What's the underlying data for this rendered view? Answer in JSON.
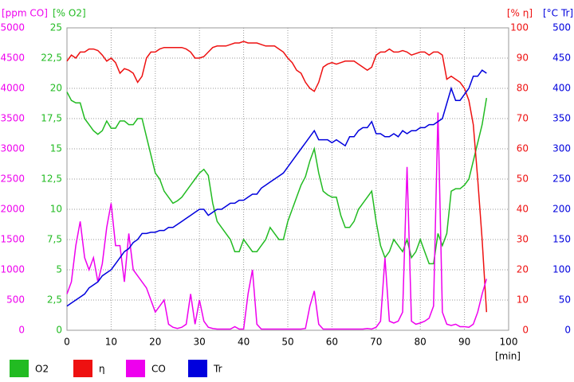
{
  "chart_data": {
    "type": "line",
    "ylabel": "[ppm CO]",
    "y2label": "[% O2]",
    "y3label": "[% η]",
    "y4label": "[°C Tr]",
    "xlabel": "[min]",
    "xlim": [
      0,
      100
    ],
    "xticks": [
      0,
      10,
      20,
      30,
      40,
      50,
      60,
      70,
      80,
      90,
      100
    ],
    "ylim": [
      0,
      5000
    ],
    "yticks": [
      0,
      500,
      1000,
      1500,
      2000,
      2500,
      3000,
      3500,
      4000,
      4500,
      5000
    ],
    "y2lim": [
      0,
      25
    ],
    "y2ticks": [
      0,
      {
        "value": 2.5,
        "label": "2,5"
      },
      5,
      {
        "value": 7.5,
        "label": "7,5"
      },
      10,
      {
        "value": 12.5,
        "label": "12,5"
      },
      15,
      {
        "value": 17.5,
        "label": "17,5"
      },
      20,
      {
        "value": 22.5,
        "label": "22,5"
      },
      25
    ],
    "y3lim": [
      0,
      100
    ],
    "y3ticks": [
      0,
      10,
      20,
      30,
      40,
      50,
      60,
      70,
      80,
      90,
      100
    ],
    "y4lim": [
      0,
      500
    ],
    "y4ticks": [
      0,
      50,
      100,
      150,
      200,
      250,
      300,
      350,
      400,
      450,
      500
    ],
    "grid": true,
    "x": [
      0,
      1,
      2,
      3,
      4,
      5,
      6,
      7,
      8,
      9,
      10,
      11,
      12,
      13,
      14,
      15,
      16,
      17,
      18,
      19,
      20,
      21,
      22,
      23,
      24,
      25,
      26,
      27,
      28,
      29,
      30,
      31,
      32,
      33,
      34,
      35,
      36,
      37,
      38,
      39,
      40,
      41,
      42,
      43,
      44,
      45,
      46,
      47,
      48,
      49,
      50,
      51,
      52,
      53,
      54,
      55,
      56,
      57,
      58,
      59,
      60,
      61,
      62,
      63,
      64,
      65,
      66,
      67,
      68,
      69,
      70,
      71,
      72,
      73,
      74,
      75,
      76,
      77,
      78,
      79,
      80,
      81,
      82,
      83,
      84,
      85,
      86,
      87,
      88,
      89,
      90,
      91,
      92,
      93,
      94,
      95
    ],
    "series": [
      {
        "name": "O2",
        "color": "#22bb22",
        "axis": "y2",
        "values": [
          19.7,
          19,
          18.8,
          18.8,
          17.5,
          17,
          16.5,
          16.2,
          16.5,
          17.3,
          16.7,
          16.7,
          17.3,
          17.3,
          17,
          17,
          17.5,
          17.5,
          16,
          14.5,
          13,
          12.5,
          11.5,
          11,
          10.5,
          10.7,
          11,
          11.5,
          12,
          12.5,
          13,
          13.3,
          12.8,
          10.5,
          9,
          8.5,
          8,
          7.5,
          6.5,
          6.5,
          7.5,
          7,
          6.5,
          6.5,
          7,
          7.5,
          8.5,
          8,
          7.5,
          7.5,
          9,
          10,
          11,
          12,
          12.7,
          14,
          15,
          13,
          11.5,
          11.2,
          11,
          11,
          9.5,
          8.5,
          8.5,
          9,
          10,
          10.5,
          11,
          11.5,
          9,
          7,
          6,
          6.5,
          7.5,
          7,
          6.5,
          7.5,
          6,
          6.5,
          7.5,
          6.5,
          5.5,
          5.5,
          8,
          7,
          8,
          11.5,
          11.7,
          11.7,
          12,
          12.5,
          14,
          15.5,
          17,
          19.2
        ]
      },
      {
        "name": "η",
        "color": "#ee1111",
        "axis": "y3",
        "values": [
          89,
          91,
          90,
          92,
          92,
          93,
          93,
          92.5,
          91,
          89,
          90,
          88.5,
          85,
          86.5,
          86,
          85,
          82,
          84,
          90,
          92,
          92,
          93,
          93.5,
          93.5,
          93.5,
          93.5,
          93.5,
          93,
          92,
          90,
          90,
          90.5,
          92,
          93.5,
          94,
          94,
          94,
          94.5,
          95,
          95,
          95.5,
          95,
          95,
          95,
          94.5,
          94,
          94,
          94,
          93,
          92,
          90,
          88.5,
          86,
          85,
          82,
          80,
          79,
          82,
          87,
          88,
          88.5,
          88,
          88.5,
          89,
          89,
          89,
          88,
          87,
          86,
          87,
          91,
          92,
          92,
          93,
          92,
          92,
          92.5,
          92,
          91,
          91.5,
          92,
          92,
          91,
          92,
          92,
          91,
          83,
          84,
          83,
          82,
          80,
          76,
          68,
          50,
          30,
          6
        ]
      },
      {
        "name": "CO",
        "color": "#ee00ee",
        "axis": "y",
        "values": [
          600,
          800,
          1400,
          1800,
          1200,
          1000,
          1200,
          800,
          1100,
          1700,
          2100,
          1400,
          1400,
          800,
          1600,
          1000,
          900,
          800,
          700,
          500,
          300,
          400,
          500,
          100,
          50,
          30,
          50,
          100,
          600,
          100,
          500,
          150,
          50,
          30,
          20,
          20,
          20,
          20,
          60,
          20,
          20,
          600,
          1000,
          100,
          20,
          20,
          20,
          20,
          20,
          20,
          20,
          20,
          20,
          20,
          30,
          400,
          650,
          100,
          20,
          20,
          20,
          20,
          20,
          20,
          20,
          20,
          20,
          20,
          30,
          20,
          50,
          150,
          1200,
          150,
          120,
          150,
          300,
          2700,
          150,
          100,
          120,
          150,
          200,
          400,
          3600,
          300,
          100,
          80,
          100,
          60,
          60,
          50,
          100,
          300,
          600,
          850
        ]
      },
      {
        "name": "Tr",
        "color": "#0000dd",
        "axis": "y4",
        "values": [
          40,
          45,
          50,
          55,
          60,
          70,
          75,
          80,
          90,
          95,
          100,
          110,
          120,
          130,
          135,
          145,
          150,
          160,
          160,
          162,
          162,
          165,
          165,
          170,
          170,
          175,
          180,
          185,
          190,
          195,
          200,
          200,
          190,
          195,
          200,
          200,
          205,
          210,
          210,
          215,
          215,
          220,
          225,
          225,
          235,
          240,
          245,
          250,
          255,
          260,
          270,
          280,
          290,
          300,
          310,
          320,
          330,
          315,
          315,
          315,
          310,
          315,
          310,
          305,
          320,
          320,
          330,
          335,
          335,
          345,
          325,
          325,
          320,
          320,
          325,
          320,
          330,
          325,
          330,
          330,
          335,
          335,
          340,
          340,
          345,
          350,
          375,
          400,
          380,
          380,
          390,
          400,
          420,
          420,
          430,
          425
        ]
      }
    ]
  }
}
